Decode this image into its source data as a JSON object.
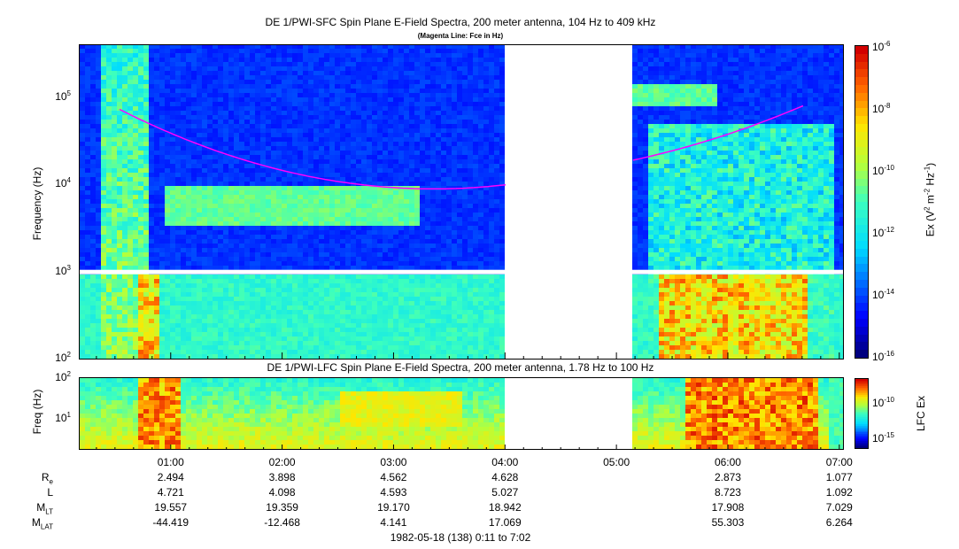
{
  "chart_data": [
    {
      "type": "heatmap",
      "title": "DE 1/PWI-SFC  Spin Plane E-Field Spectra, 200 meter antenna, 104 Hz to 409 kHz",
      "subtitle": "(Magenta Line: Fce in Hz)",
      "ylabel": "Frequency (Hz)",
      "yscale": "log",
      "ylim": [
        100,
        409000
      ],
      "yticks": [
        "10^2",
        "10^3",
        "10^4",
        "10^5"
      ],
      "colorbar": {
        "label": "Ex (V^2 m^-2 Hz^-1)",
        "scale": "log",
        "range": [
          1e-16,
          1e-06
        ],
        "ticks": [
          "10^-6",
          "10^-8",
          "10^-10",
          "10^-12",
          "10^-14",
          "10^-16"
        ]
      },
      "line_color": "#ff00ff",
      "data_gap": [
        "04:02",
        "05:08"
      ]
    },
    {
      "type": "heatmap",
      "title": "DE 1/PWI-LFC  Spin Plane E-Field Spectra, 200 meter antenna, 1.78 Hz to 100 Hz",
      "ylabel": "Freq (Hz)",
      "yscale": "log",
      "ylim": [
        1.78,
        100
      ],
      "yticks": [
        "10^1",
        "10^2"
      ],
      "colorbar": {
        "label": "LFC Ex",
        "scale": "log",
        "ticks": [
          "10^-10",
          "10^-15"
        ]
      },
      "data_gap": [
        "04:02",
        "05:08"
      ]
    }
  ],
  "axis": {
    "time_ticks": [
      "01:00",
      "02:00",
      "03:00",
      "04:00",
      "05:00",
      "06:00",
      "07:00"
    ],
    "time_range": [
      "0:11",
      "7:02"
    ],
    "xlabel": "1982-05-18 (138) 0:11 to 7:02"
  },
  "ephemeris": {
    "rows": [
      {
        "name": "R",
        "sub": "e",
        "values": [
          "2.494",
          "3.898",
          "4.562",
          "4.628",
          "",
          "2.873",
          "1.077"
        ]
      },
      {
        "name": "L",
        "sub": "",
        "values": [
          "4.721",
          "4.098",
          "4.593",
          "5.027",
          "",
          "8.723",
          "1.092"
        ]
      },
      {
        "name": "M",
        "sub": "LT",
        "values": [
          "19.557",
          "19.359",
          "19.170",
          "18.942",
          "",
          "17.908",
          "7.029"
        ]
      },
      {
        "name": "M",
        "sub": "LAT",
        "values": [
          "-44.419",
          "-12.468",
          "4.141",
          "17.069",
          "",
          "55.303",
          "6.264"
        ]
      }
    ]
  }
}
